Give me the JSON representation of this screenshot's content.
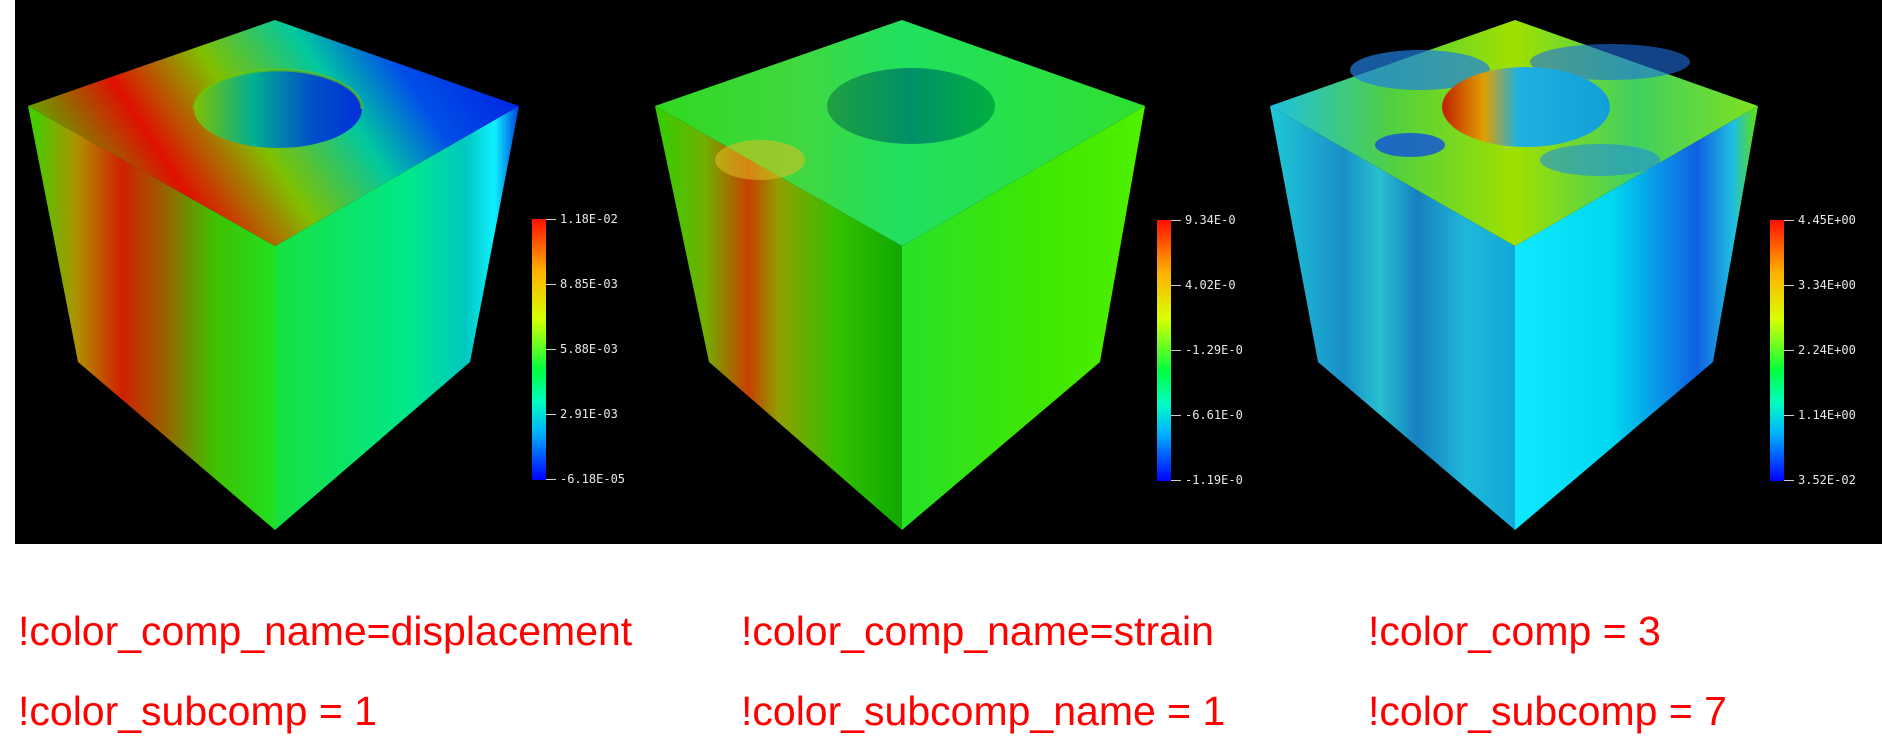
{
  "panels": [
    {
      "name": "displacement",
      "legend_labels": [
        "1.18E-02",
        "8.85E-03",
        "5.88E-03",
        "2.91E-03",
        "-6.18E-05"
      ],
      "captions": [
        "!color_comp_name=displacement",
        "!color_subcomp = 1"
      ]
    },
    {
      "name": "strain",
      "legend_labels": [
        "9.34E-0",
        "4.02E-0",
        "-1.29E-0",
        "-6.61E-0",
        "-1.19E-0"
      ],
      "captions": [
        "!color_comp_name=strain",
        "!color_subcomp_name = 1"
      ]
    },
    {
      "name": "comp3",
      "legend_labels": [
        "4.45E+00",
        "3.34E+00",
        "2.24E+00",
        "1.14E+00",
        "3.52E-02"
      ],
      "captions": [
        "!color_comp = 3",
        "!color_subcomp = 7"
      ]
    }
  ],
  "colors": {
    "caption_text": "#ff0000",
    "viewport_background": "#000000",
    "colormap": [
      "#ff0000",
      "#ffff00",
      "#00ff00",
      "#00ffff",
      "#0000ff"
    ]
  }
}
